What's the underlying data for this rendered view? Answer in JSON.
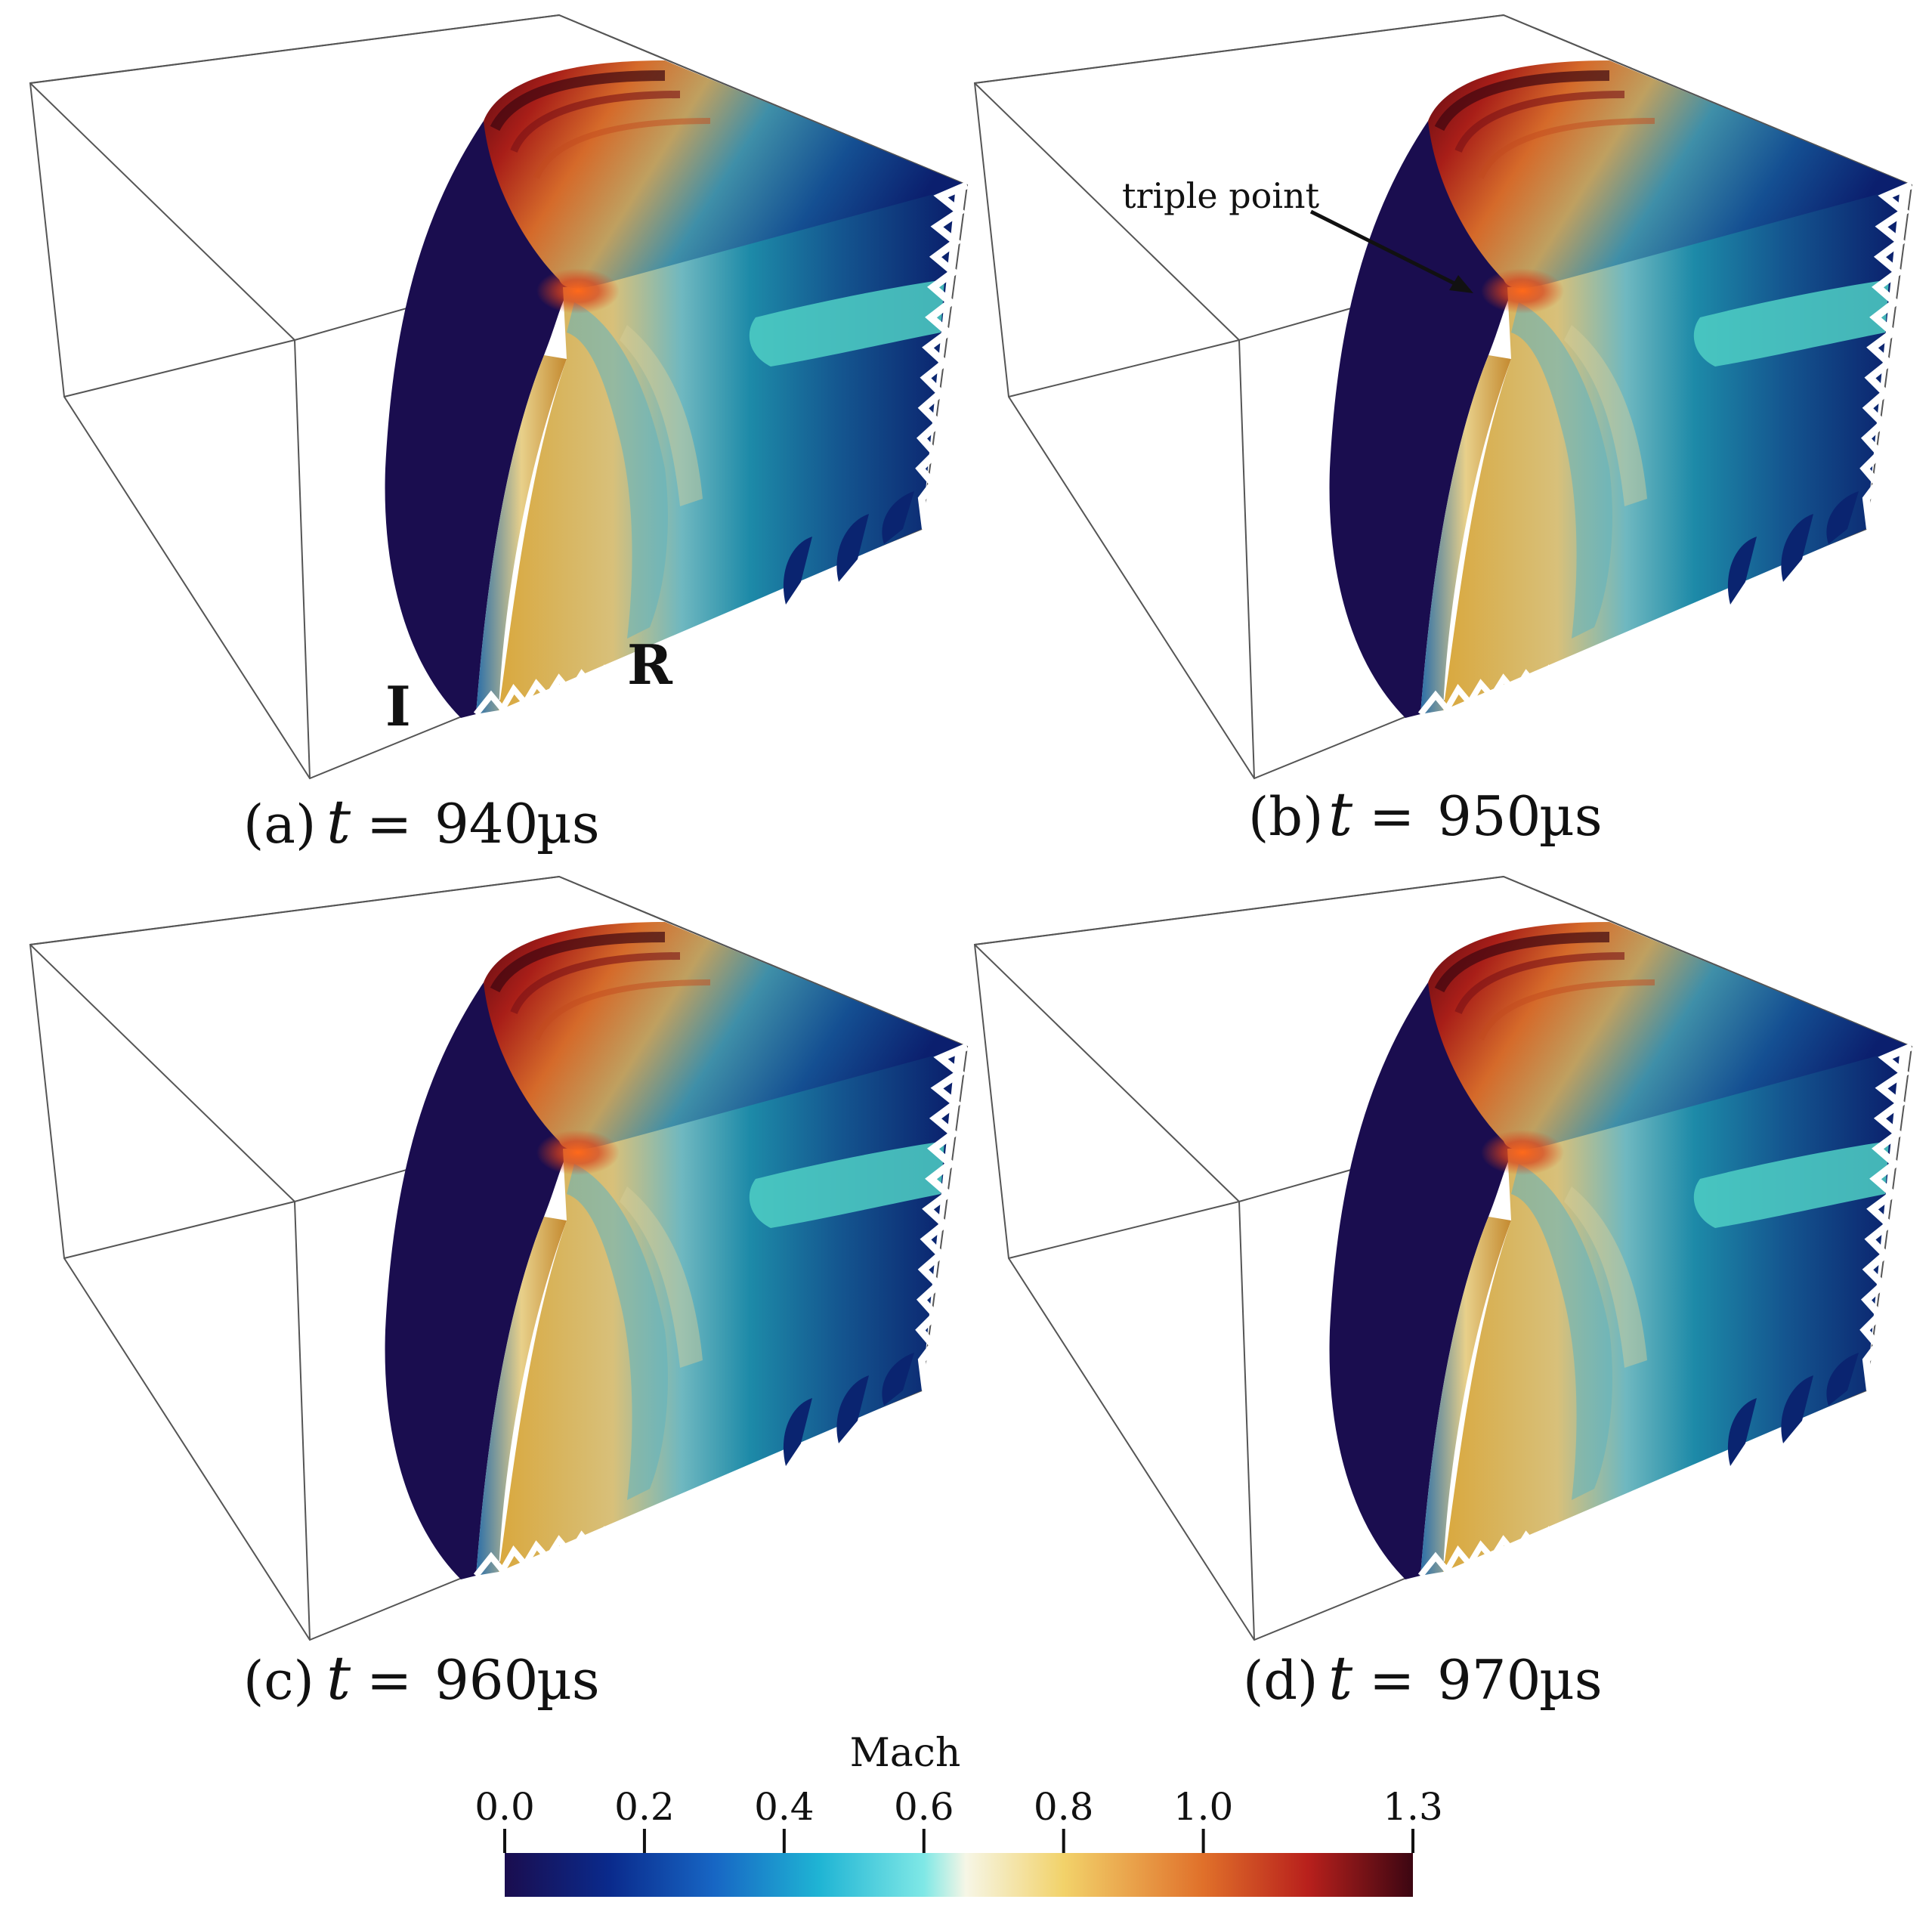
{
  "panels": [
    {
      "label": "(a)",
      "t_symbol": "t",
      "equals": "=",
      "time": "940",
      "unit": "µs",
      "annotations": [
        "I",
        "R"
      ]
    },
    {
      "label": "(b)",
      "t_symbol": "t",
      "equals": "=",
      "time": "950",
      "unit": "µs",
      "annotations": [
        "triple point"
      ]
    },
    {
      "label": "(c)",
      "t_symbol": "t",
      "equals": "=",
      "time": "960",
      "unit": "µs",
      "annotations": []
    },
    {
      "label": "(d)",
      "t_symbol": "t",
      "equals": "=",
      "time": "970",
      "unit": "µs",
      "annotations": []
    }
  ],
  "colorbar": {
    "title": "Mach",
    "ticks": [
      "0.0",
      "0.2",
      "0.4",
      "0.6",
      "0.8",
      "1.0",
      "1.3"
    ],
    "tick_values": [
      0.0,
      0.2,
      0.4,
      0.6,
      0.8,
      1.0,
      1.3
    ],
    "range": [
      0.0,
      1.3
    ],
    "stops": [
      {
        "value": 0.0,
        "color": "#1a0d4f"
      },
      {
        "value": 0.15,
        "color": "#0a2a8c"
      },
      {
        "value": 0.3,
        "color": "#1766c4"
      },
      {
        "value": 0.45,
        "color": "#1fb4d4"
      },
      {
        "value": 0.6,
        "color": "#7fe8e6"
      },
      {
        "value": 0.66,
        "color": "#f6f6e6"
      },
      {
        "value": 0.8,
        "color": "#f2d26a"
      },
      {
        "value": 1.0,
        "color": "#e0702a"
      },
      {
        "value": 1.15,
        "color": "#b8201c"
      },
      {
        "value": 1.3,
        "color": "#3c0612"
      }
    ]
  }
}
